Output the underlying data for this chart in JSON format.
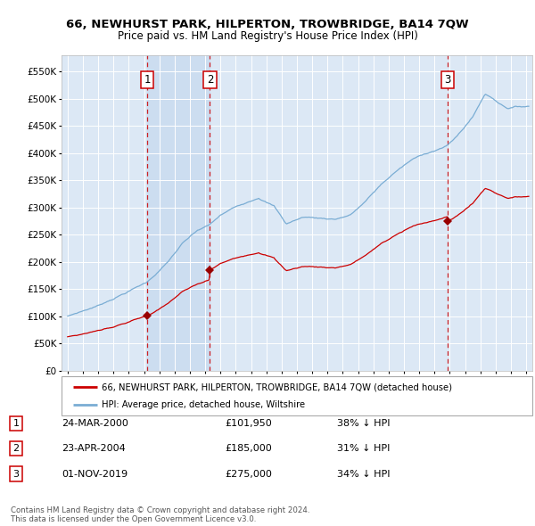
{
  "title1": "66, NEWHURST PARK, HILPERTON, TROWBRIDGE, BA14 7QW",
  "title2": "Price paid vs. HM Land Registry's House Price Index (HPI)",
  "legend_label_red": "66, NEWHURST PARK, HILPERTON, TROWBRIDGE, BA14 7QW (detached house)",
  "legend_label_blue": "HPI: Average price, detached house, Wiltshire",
  "transactions": [
    {
      "num": 1,
      "date": "24-MAR-2000",
      "date_x": 2000.22,
      "price": 101950,
      "pct": "38% ↓ HPI"
    },
    {
      "num": 2,
      "date": "23-APR-2004",
      "date_x": 2004.31,
      "price": 185000,
      "pct": "31% ↓ HPI"
    },
    {
      "num": 3,
      "date": "01-NOV-2019",
      "date_x": 2019.84,
      "price": 275000,
      "pct": "34% ↓ HPI"
    }
  ],
  "footnote1": "Contains HM Land Registry data © Crown copyright and database right 2024.",
  "footnote2": "This data is licensed under the Open Government Licence v3.0.",
  "ylim": [
    0,
    580000
  ],
  "xlim_start": 1994.6,
  "xlim_end": 2025.4,
  "background_color": "#ffffff",
  "plot_bg_color": "#dce8f5",
  "grid_color": "#ffffff",
  "red_line_color": "#cc0000",
  "blue_line_color": "#7aadd4",
  "vline_color": "#cc0000",
  "shade_color": "#ccddf0",
  "box_color": "#cc0000"
}
